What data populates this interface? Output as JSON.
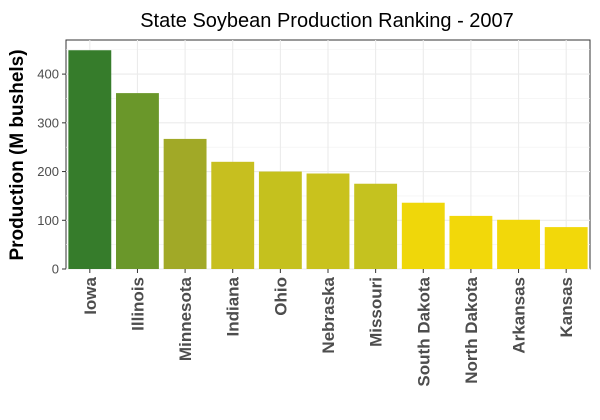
{
  "chart_data": {
    "type": "bar",
    "title": "State Soybean Production Ranking - 2007",
    "xlabel": "",
    "ylabel": "Production (M bushels)",
    "categories": [
      "Iowa",
      "Illinois",
      "Minnesota",
      "Indiana",
      "Ohio",
      "Nebraska",
      "Missouri",
      "South Dakota",
      "North Dakota",
      "Arkansas",
      "Kansas"
    ],
    "values": [
      449,
      361,
      267,
      220,
      200,
      196,
      175,
      136,
      109,
      101,
      86
    ],
    "colors": [
      "#367c2b",
      "#6a972a",
      "#a1a927",
      "#c7bf1f",
      "#c5c11e",
      "#c9c21d",
      "#c5c21f",
      "#efd70a",
      "#f2d80a",
      "#f2d80a",
      "#f2d80a"
    ],
    "ylim": [
      0,
      470
    ],
    "yticks": [
      0,
      100,
      200,
      300,
      400
    ],
    "grid": true,
    "legend": "none"
  }
}
